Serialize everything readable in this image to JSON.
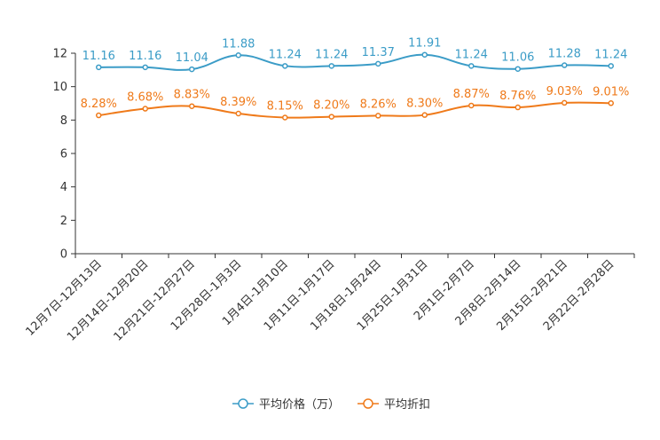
{
  "chart_data": {
    "type": "line",
    "title": "",
    "xlabel": "",
    "ylabel": "",
    "ylim": [
      0,
      12
    ],
    "yticks": [
      0,
      2,
      4,
      6,
      8,
      10,
      12
    ],
    "grid": false,
    "legend_position": "bottom-center",
    "categories": [
      "12月7日-12月13日",
      "12月14日-12月20日",
      "12月21日-12月27日",
      "12月28日-1月3日",
      "1月4日-1月10日",
      "1月11日-1月17日",
      "1月18日-1月24日",
      "1月25日-1月31日",
      "2月1日-2月7日",
      "2月8日-2月14日",
      "2月15日-2月21日",
      "2月22日-2月28日"
    ],
    "series": [
      {
        "name": "平均价格（万）",
        "color": "#3b9cc7",
        "values": [
          11.16,
          11.16,
          11.04,
          11.88,
          11.24,
          11.24,
          11.37,
          11.91,
          11.24,
          11.06,
          11.28,
          11.24
        ],
        "labels": [
          "11.16",
          "11.16",
          "11.04",
          "11.88",
          "11.24",
          "11.24",
          "11.37",
          "11.91",
          "11.24",
          "11.06",
          "11.28",
          "11.24"
        ]
      },
      {
        "name": "平均折扣",
        "color": "#ef7a1a",
        "values": [
          8.28,
          8.68,
          8.83,
          8.39,
          8.15,
          8.2,
          8.26,
          8.3,
          8.87,
          8.76,
          9.03,
          9.01
        ],
        "labels": [
          "8.28%",
          "8.68%",
          "8.83%",
          "8.39%",
          "8.15%",
          "8.20%",
          "8.26%",
          "8.30%",
          "8.87%",
          "8.76%",
          "9.03%",
          "9.01%"
        ]
      }
    ]
  }
}
